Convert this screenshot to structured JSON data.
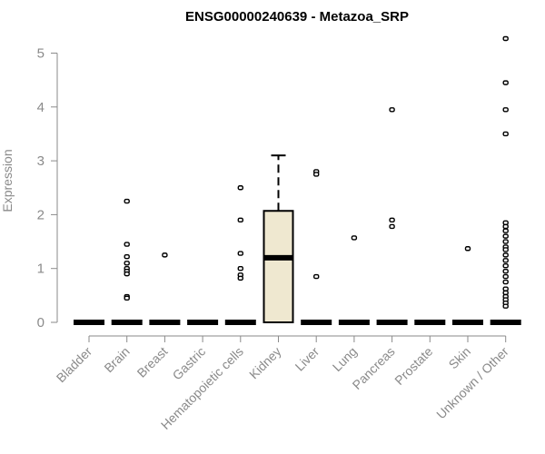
{
  "chart_data": {
    "type": "boxplot",
    "title": "ENSG00000240639 - Metazoa_SRP",
    "xlabel": "",
    "ylabel": "Expression",
    "ylim": [
      0,
      5.3
    ],
    "yticks": [
      "0",
      "1",
      "2",
      "3",
      "4",
      "5"
    ],
    "grid": false,
    "box_fill": "#efe8d0",
    "categories": [
      "Bladder",
      "Brain",
      "Breast",
      "Gastric",
      "Hematopoietic cells",
      "Kidney",
      "Liver",
      "Lung",
      "Pancreas",
      "Prostate",
      "Skin",
      "Unknown / Other"
    ],
    "boxes": [
      {
        "q1": 0,
        "median": 0,
        "q3": 0,
        "whisker_low": 0,
        "whisker_high": 0,
        "outliers": []
      },
      {
        "q1": 0,
        "median": 0,
        "q3": 0,
        "whisker_low": 0,
        "whisker_high": 0,
        "outliers": [
          2.25,
          1.45,
          1.22,
          1.1,
          1.0,
          0.95,
          0.9,
          0.48,
          0.45
        ]
      },
      {
        "q1": 0,
        "median": 0,
        "q3": 0,
        "whisker_low": 0,
        "whisker_high": 0,
        "outliers": [
          1.25
        ]
      },
      {
        "q1": 0,
        "median": 0,
        "q3": 0,
        "whisker_low": 0,
        "whisker_high": 0,
        "outliers": []
      },
      {
        "q1": 0,
        "median": 0,
        "q3": 0,
        "whisker_low": 0,
        "whisker_high": 0,
        "outliers": [
          2.5,
          1.9,
          1.28,
          1.0,
          0.88,
          0.82
        ]
      },
      {
        "q1": 0,
        "median": 1.2,
        "q3": 2.07,
        "whisker_low": 0,
        "whisker_high": 3.1,
        "outliers": []
      },
      {
        "q1": 0,
        "median": 0,
        "q3": 0,
        "whisker_low": 0,
        "whisker_high": 0,
        "outliers": [
          2.8,
          2.75,
          0.85
        ]
      },
      {
        "q1": 0,
        "median": 0,
        "q3": 0,
        "whisker_low": 0,
        "whisker_high": 0,
        "outliers": [
          1.57
        ]
      },
      {
        "q1": 0,
        "median": 0,
        "q3": 0,
        "whisker_low": 0,
        "whisker_high": 0,
        "outliers": [
          3.95,
          1.9,
          1.78
        ]
      },
      {
        "q1": 0,
        "median": 0,
        "q3": 0,
        "whisker_low": 0,
        "whisker_high": 0,
        "outliers": []
      },
      {
        "q1": 0,
        "median": 0,
        "q3": 0,
        "whisker_low": 0,
        "whisker_high": 0,
        "outliers": [
          1.37
        ]
      },
      {
        "q1": 0,
        "median": 0,
        "q3": 0,
        "whisker_low": 0,
        "whisker_high": 0,
        "outliers": [
          5.27,
          4.45,
          3.95,
          3.5,
          1.85,
          1.78,
          1.7,
          1.6,
          1.5,
          1.4,
          1.35,
          1.25,
          1.15,
          1.05,
          0.95,
          0.85,
          0.75,
          0.62,
          0.55,
          0.48,
          0.42,
          0.36,
          0.3
        ]
      }
    ]
  }
}
